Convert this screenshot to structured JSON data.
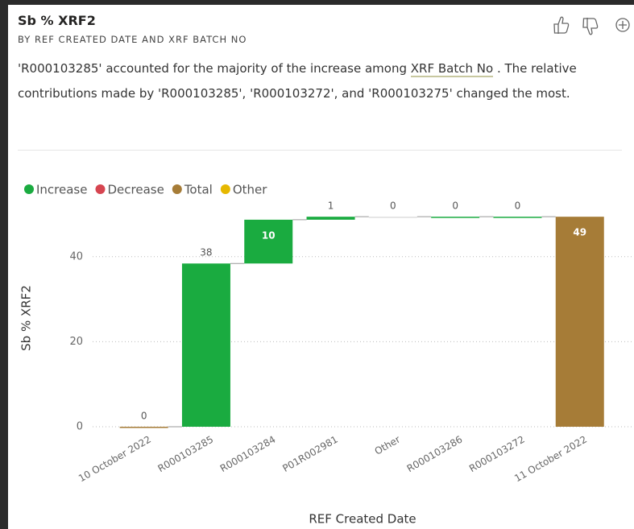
{
  "header": {
    "title": "Sb % XRF2",
    "subtitle": "BY REF CREATED DATE AND XRF BATCH NO"
  },
  "narrative": {
    "before": "'R000103285' accounted for the majority of the increase among ",
    "link": "XRF Batch No",
    "after": " . The relative contributions made by 'R000103285', 'R000103272', and 'R000103275' changed the most."
  },
  "chart_data": {
    "type": "waterfall",
    "legend": [
      {
        "name": "Increase",
        "color": "#1aab40"
      },
      {
        "name": "Decrease",
        "color": "#d64550"
      },
      {
        "name": "Total",
        "color": "#a67c37"
      },
      {
        "name": "Other",
        "color": "#e6b800"
      }
    ],
    "categories": [
      "10 October 2022",
      "R000103285",
      "R000103284",
      "P01R002981",
      "Other",
      "R000103286",
      "R000103272",
      "11 October 2022"
    ],
    "values": [
      0,
      38.4,
      10.3,
      0.7,
      0,
      0,
      0,
      49.4
    ],
    "value_labels": [
      "0",
      "38",
      "10",
      "1",
      "0",
      "0",
      "0",
      "49"
    ],
    "kinds": [
      "Total",
      "Increase",
      "Increase",
      "Increase",
      "Other",
      "Increase",
      "Increase",
      "Total"
    ],
    "xlabel": "REF Created Date",
    "ylabel": "Sb % XRF2",
    "ylim": [
      0,
      50
    ],
    "yticks": [
      0,
      20,
      40
    ],
    "grid": true
  }
}
